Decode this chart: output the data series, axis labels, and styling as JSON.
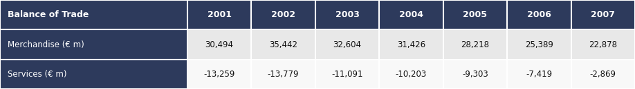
{
  "header_col": "Balance of Trade",
  "years": [
    "2001",
    "2002",
    "2003",
    "2004",
    "2005",
    "2006",
    "2007"
  ],
  "rows": [
    {
      "label": "Merchandise (€ m)",
      "values": [
        "30,494",
        "35,442",
        "32,604",
        "31,426",
        "28,218",
        "25,389",
        "22,878"
      ]
    },
    {
      "label": "Services (€ m)",
      "values": [
        "-13,259",
        "-13,779",
        "-11,091",
        "-10,203",
        "-9,303",
        "-7,419",
        "-2,869"
      ]
    }
  ],
  "header_bg": "#2d3a5c",
  "header_text_color": "#ffffff",
  "row_bg_odd": "#e8e8e8",
  "row_bg_even": "#f8f8f8",
  "label_bg": "#2d3a5c",
  "label_text_color": "#ffffff",
  "cell_text_color": "#111111",
  "border_color": "#ffffff",
  "figsize": [
    9.18,
    1.3
  ],
  "dpi": 100
}
